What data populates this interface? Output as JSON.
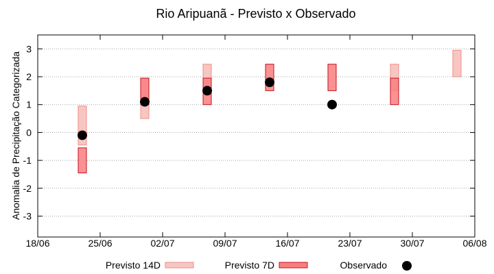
{
  "chart_data": {
    "type": "range-bar with scatter",
    "title": "Rio Aripuanã - Previsto x Observado",
    "ylabel": "Anomalia de Precipitação Categorizada",
    "xlabel": "",
    "xlim": [
      "18/06",
      "06/08"
    ],
    "ylim": [
      -3.75,
      3.5
    ],
    "x_ticks": [
      "18/06",
      "25/06",
      "02/07",
      "09/07",
      "16/07",
      "23/07",
      "30/07",
      "06/08"
    ],
    "y_ticks": [
      "3",
      "2",
      "1",
      "0",
      "-1",
      "-2",
      "-3"
    ],
    "grid": "horizontal dotted",
    "legend_position": "bottom",
    "series": [
      {
        "name": "Previsto 14D",
        "color": "#f7c6c2",
        "stroke": "#ee8d87",
        "ranges": [
          {
            "x": "23/06",
            "low": -0.45,
            "high": 0.95
          },
          {
            "x": "30/06",
            "low": 0.5,
            "high": 1.95
          },
          {
            "x": "07/07",
            "low": 1.5,
            "high": 2.45
          },
          {
            "x": "28/07",
            "low": 1.5,
            "high": 2.45
          },
          {
            "x": "04/08",
            "low": 2.0,
            "high": 2.95
          }
        ]
      },
      {
        "name": "Previsto 7D",
        "color": "#f97f7f",
        "stroke": "#c4101e",
        "ranges": [
          {
            "x": "23/06",
            "low": -1.45,
            "high": -0.55
          },
          {
            "x": "30/06",
            "low": 1.0,
            "high": 1.95
          },
          {
            "x": "07/07",
            "low": 1.0,
            "high": 1.95
          },
          {
            "x": "14/07",
            "low": 1.5,
            "high": 2.45
          },
          {
            "x": "21/07",
            "low": 1.5,
            "high": 2.45
          },
          {
            "x": "28/07",
            "low": 1.0,
            "high": 1.95
          }
        ]
      },
      {
        "name": "Observado",
        "color": "#000000",
        "points": [
          {
            "x": "23/06",
            "y": -0.1
          },
          {
            "x": "30/06",
            "y": 1.1
          },
          {
            "x": "07/07",
            "y": 1.5
          },
          {
            "x": "14/07",
            "y": 1.8
          },
          {
            "x": "21/07",
            "y": 1.0
          }
        ]
      }
    ]
  }
}
